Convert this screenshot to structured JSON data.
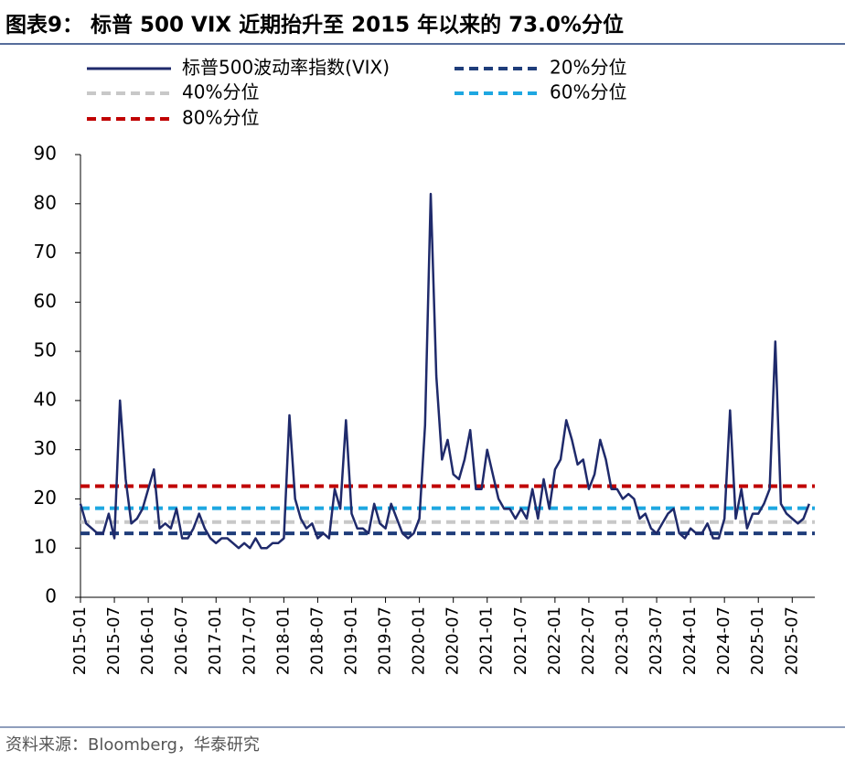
{
  "chart_data": {
    "type": "line",
    "title": "图表9：  标普 500 VIX 近期抬升至 2015 年以来的 73.0%分位",
    "source": "资料来源：Bloomberg，华泰研究",
    "xlim": [
      "2015-01",
      "2025-11"
    ],
    "xticks": [
      "2015-01",
      "2015-07",
      "2016-01",
      "2016-07",
      "2017-01",
      "2017-07",
      "2018-01",
      "2018-07",
      "2019-01",
      "2019-07",
      "2020-01",
      "2020-07",
      "2021-01",
      "2021-07",
      "2022-01",
      "2022-07",
      "2023-01",
      "2023-07",
      "2024-01",
      "2024-07",
      "2025-01",
      "2025-07"
    ],
    "ylim": [
      0,
      90
    ],
    "yticks": [
      0,
      10,
      20,
      30,
      40,
      50,
      60,
      70,
      80,
      90
    ],
    "series": [
      {
        "name": "标普500波动率指数(VIX)",
        "color": "#1f2a6b",
        "start": "2015-01",
        "values": [
          19,
          15,
          14,
          13,
          13,
          17,
          12,
          40,
          24,
          15,
          16,
          18,
          22,
          26,
          14,
          15,
          14,
          18,
          12,
          12,
          14,
          17,
          14,
          12,
          11,
          12,
          12,
          11,
          10,
          11,
          10,
          12,
          10,
          10,
          11,
          11,
          12,
          37,
          20,
          16,
          14,
          15,
          12,
          13,
          12,
          22,
          18,
          36,
          17,
          14,
          14,
          13,
          19,
          15,
          14,
          19,
          16,
          13,
          12,
          13,
          16,
          35,
          82,
          45,
          28,
          32,
          25,
          24,
          28,
          34,
          22,
          22,
          30,
          25,
          20,
          18,
          18,
          16,
          18,
          16,
          22,
          16,
          24,
          18,
          26,
          28,
          36,
          32,
          27,
          28,
          22,
          25,
          32,
          28,
          22,
          22,
          20,
          21,
          20,
          16,
          17,
          14,
          13,
          15,
          17,
          18,
          13,
          12,
          14,
          13,
          13,
          15,
          12,
          12,
          16,
          38,
          16,
          22,
          14,
          17,
          17,
          19,
          22,
          52,
          19,
          17,
          16,
          15,
          16,
          19
        ]
      }
    ],
    "hlines": [
      {
        "name": "20%分位",
        "color": "#1f3d7a",
        "value": 13
      },
      {
        "name": "40%分位",
        "color": "#c8c8c8",
        "value": 15.3
      },
      {
        "name": "60%分位",
        "color": "#1ea7e1",
        "value": 18.1
      },
      {
        "name": "80%分位",
        "color": "#c00000",
        "value": 22.6
      }
    ]
  }
}
